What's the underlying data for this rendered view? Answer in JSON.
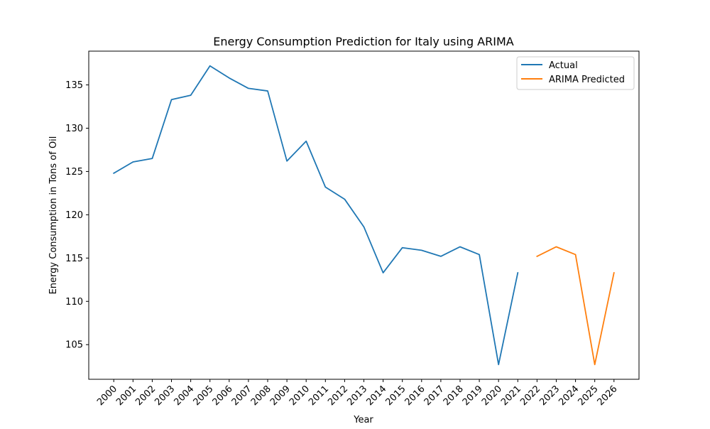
{
  "chart_data": {
    "type": "line",
    "title": "Energy Consumption Prediction for Italy using ARIMA",
    "xlabel": "Year",
    "ylabel": "Energy Consumption in Tons of Oil",
    "xlim": [
      1998.7,
      2027.3
    ],
    "ylim": [
      101.0,
      138.9
    ],
    "x_ticks": [
      "2000",
      "2001",
      "2002",
      "2003",
      "2004",
      "2005",
      "2006",
      "2007",
      "2008",
      "2009",
      "2010",
      "2011",
      "2012",
      "2013",
      "2014",
      "2015",
      "2016",
      "2017",
      "2018",
      "2019",
      "2020",
      "2021",
      "2022",
      "2023",
      "2024",
      "2025",
      "2026"
    ],
    "y_ticks": [
      105,
      110,
      115,
      120,
      125,
      130,
      135
    ],
    "grid": false,
    "legend_position": "top-right",
    "series": [
      {
        "name": "Actual",
        "color": "#1f77b4",
        "x": [
          2000,
          2001,
          2002,
          2003,
          2004,
          2005,
          2006,
          2007,
          2008,
          2009,
          2010,
          2011,
          2012,
          2013,
          2014,
          2015,
          2016,
          2017,
          2018,
          2019,
          2020,
          2021
        ],
        "values": [
          124.8,
          126.1,
          126.5,
          133.3,
          133.8,
          137.2,
          135.8,
          134.6,
          134.3,
          126.2,
          128.5,
          123.2,
          121.8,
          118.6,
          113.3,
          116.2,
          115.9,
          115.2,
          116.3,
          115.4,
          102.7,
          113.3
        ]
      },
      {
        "name": "ARIMA Predicted",
        "color": "#ff7f0e",
        "x": [
          2022,
          2023,
          2024,
          2025,
          2026
        ],
        "values": [
          115.2,
          116.3,
          115.4,
          102.7,
          113.3
        ]
      }
    ]
  }
}
